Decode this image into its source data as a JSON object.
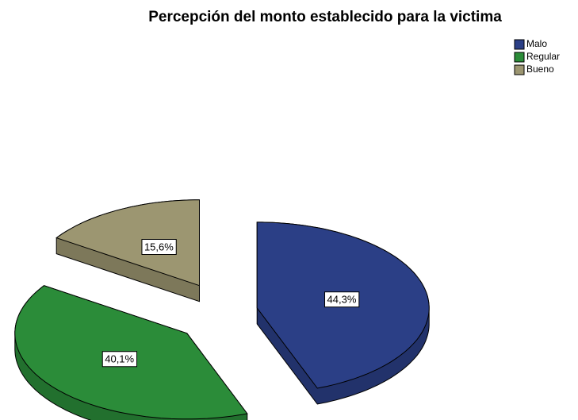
{
  "chart_data": {
    "type": "pie3d",
    "title": "Percepción del monto establecido para la victima",
    "categories": [
      "Malo",
      "Regular",
      "Bueno"
    ],
    "values": [
      44.3,
      40.1,
      15.6
    ],
    "value_labels": [
      "44,3%",
      "40,1%",
      "15,6%"
    ],
    "colors": [
      "#2b3f86",
      "#2b8c39",
      "#9c9671"
    ],
    "legend": "top-right"
  }
}
